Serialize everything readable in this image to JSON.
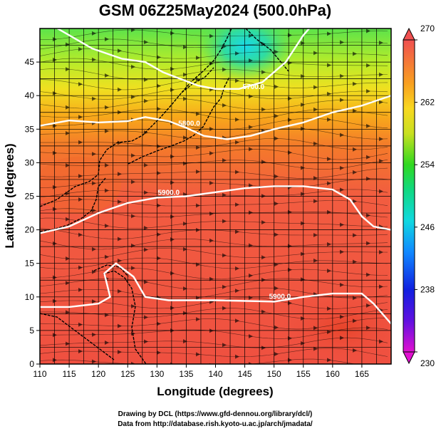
{
  "figure": {
    "title": "GSM 06Z25May2024 (500.0hPa)",
    "xlabel": "Longitude (degrees)",
    "ylabel": "Latitude  (degrees)",
    "credit_line1": "Drawing by DCL (https://www.gfd-dennou.org/library/dcl/)",
    "credit_line2": "Data from http://database.rish.kyoto-u.ac.jp/arch/jmadata/"
  },
  "chart_data": {
    "type": "heatmap",
    "xlim": [
      110,
      170
    ],
    "ylim": [
      0,
      50
    ],
    "xticks": [
      110,
      115,
      120,
      125,
      130,
      135,
      140,
      145,
      150,
      155,
      160,
      165
    ],
    "yticks": [
      0,
      5,
      10,
      15,
      20,
      25,
      30,
      35,
      40,
      45
    ],
    "grid": true,
    "colorbar": {
      "min": 230,
      "max": 270,
      "ticks": [
        230,
        238,
        246,
        254,
        262,
        270
      ],
      "placement": "right"
    },
    "contours": [
      {
        "label": "5900.0",
        "points": [
          [
            110,
            8.5
          ],
          [
            115,
            8.5
          ],
          [
            120,
            9
          ],
          [
            122,
            10
          ],
          [
            121,
            13.5
          ],
          [
            123,
            15
          ],
          [
            126,
            13
          ],
          [
            128,
            10
          ],
          [
            132,
            9.5
          ],
          [
            140,
            9.5
          ],
          [
            150,
            9.3
          ],
          [
            155,
            10
          ],
          [
            160,
            10.5
          ],
          [
            165,
            10.5
          ],
          [
            167,
            9
          ],
          [
            170,
            6
          ]
        ]
      },
      {
        "label": "5900.0",
        "points": [
          [
            110,
            19.5
          ],
          [
            115,
            20.5
          ],
          [
            120,
            22.5
          ],
          [
            125,
            24
          ],
          [
            130,
            24.8
          ],
          [
            135,
            25
          ],
          [
            140,
            25.6
          ],
          [
            145,
            26.2
          ],
          [
            150,
            26.5
          ],
          [
            155,
            26.5
          ],
          [
            160,
            26
          ],
          [
            163,
            24.5
          ],
          [
            165,
            22
          ],
          [
            167,
            20.5
          ],
          [
            170,
            20
          ]
        ]
      },
      {
        "label": "5800.0",
        "points": [
          [
            110,
            35.5
          ],
          [
            115,
            36.3
          ],
          [
            120,
            36
          ],
          [
            125,
            36.2
          ],
          [
            128,
            36.8
          ],
          [
            132,
            36.2
          ],
          [
            135,
            35.2
          ],
          [
            138,
            34
          ],
          [
            142,
            33.5
          ],
          [
            146,
            34
          ],
          [
            150,
            35
          ],
          [
            155,
            36
          ],
          [
            160,
            37.5
          ],
          [
            165,
            38.5
          ],
          [
            170,
            40
          ]
        ]
      },
      {
        "label": "5700.0",
        "points": [
          [
            113,
            50
          ],
          [
            119,
            47
          ],
          [
            124,
            45.5
          ],
          [
            128,
            45
          ],
          [
            131,
            43.5
          ],
          [
            134,
            42.5
          ],
          [
            137,
            41.5
          ],
          [
            140,
            41
          ],
          [
            144,
            41
          ],
          [
            148,
            42
          ],
          [
            152,
            45
          ],
          [
            155,
            49
          ],
          [
            156,
            50
          ]
        ]
      }
    ],
    "contour_labels": [
      {
        "text": "5900.0",
        "lon": 151,
        "lat": 9.7
      },
      {
        "text": "5900.0",
        "lon": 132,
        "lat": 25.2
      },
      {
        "text": "5800.0",
        "lon": 135.5,
        "lat": 35.5
      },
      {
        "text": "5700.0",
        "lon": 146.5,
        "lat": 41
      }
    ]
  }
}
